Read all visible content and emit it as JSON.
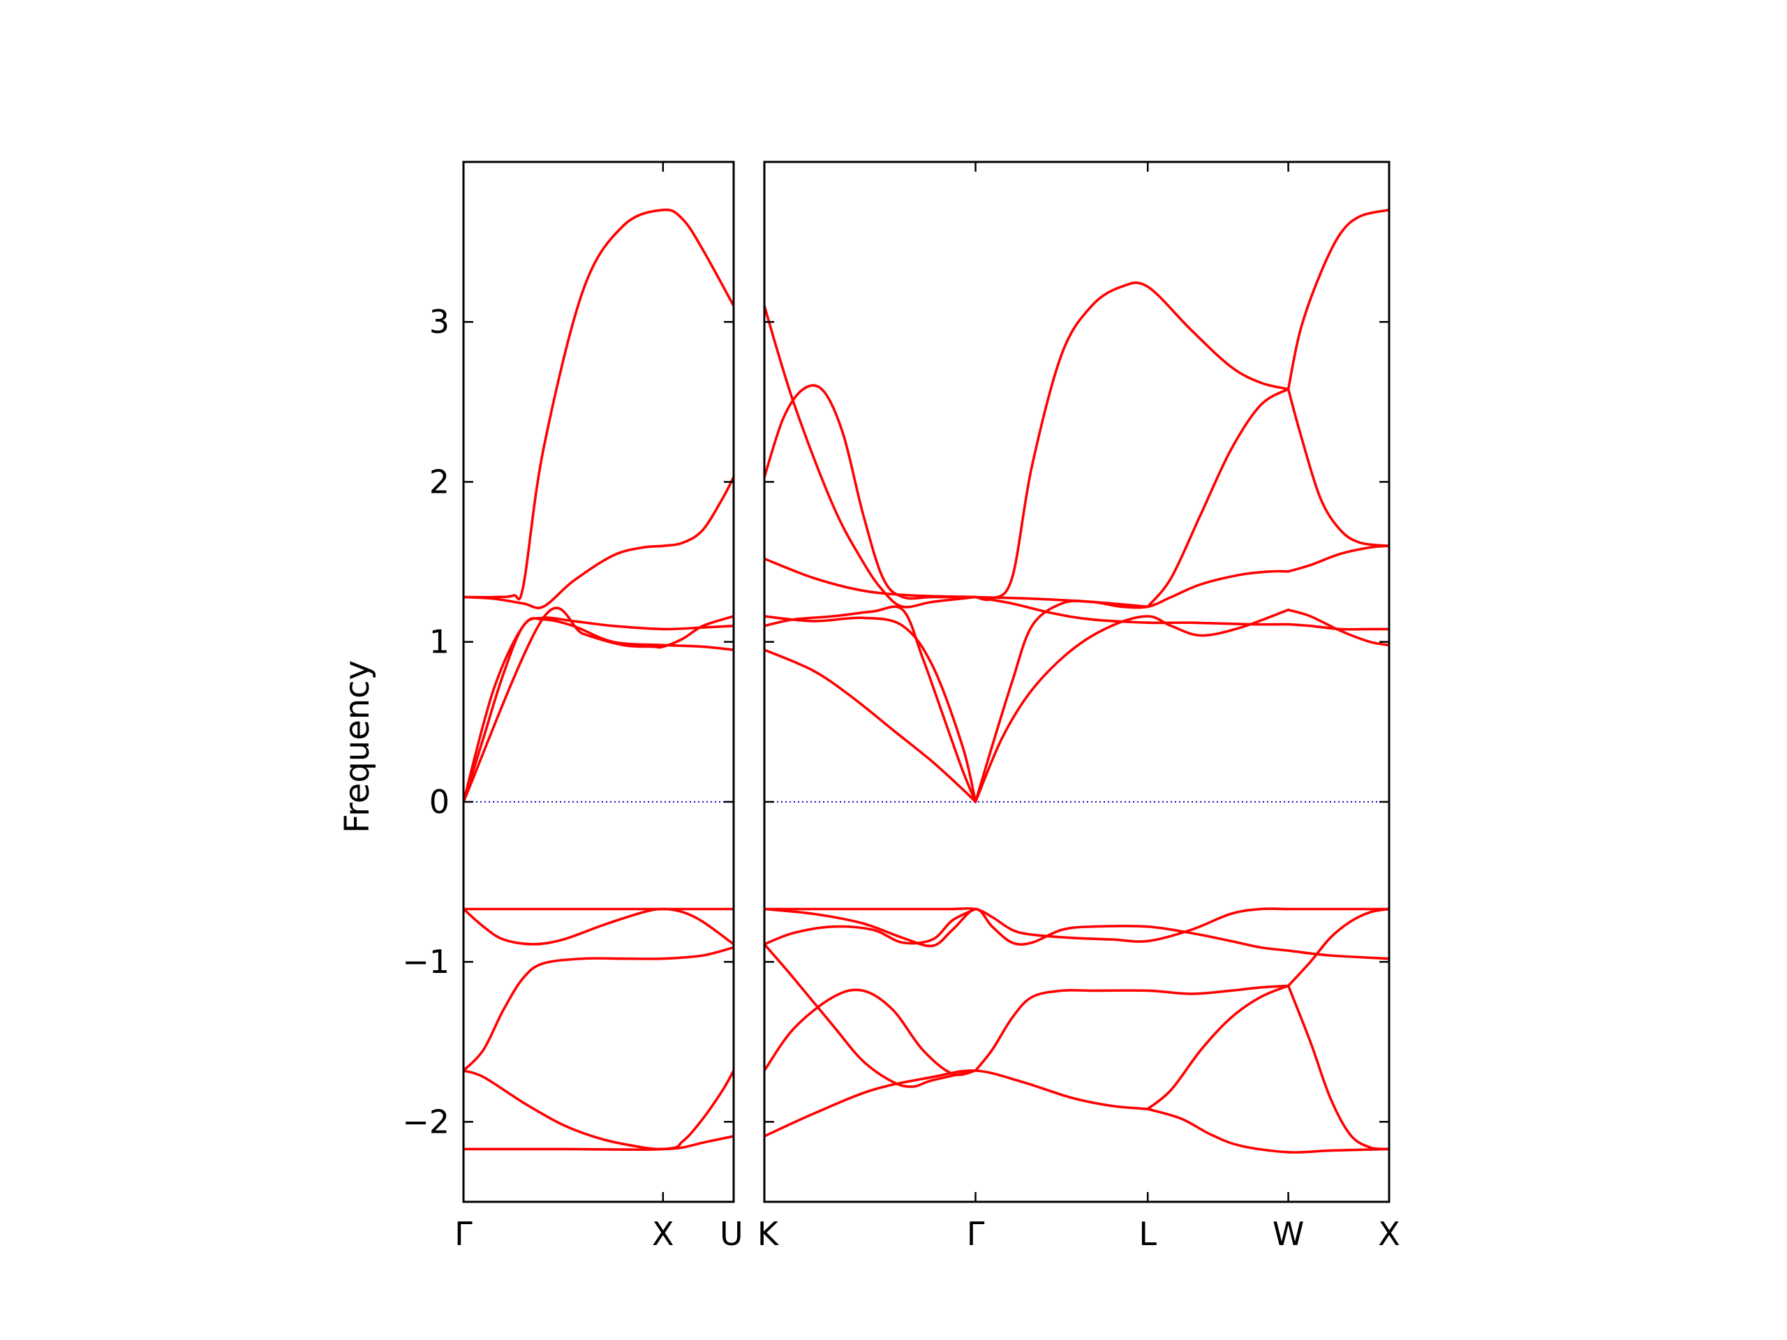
{
  "chart_data": {
    "type": "line",
    "ylabel": "Frequency",
    "ylim": [
      -2.5,
      4.0
    ],
    "yticks": [
      -2,
      -1,
      0,
      1,
      2,
      3
    ],
    "ytick_labels": [
      "−2",
      "−1",
      "0",
      "1",
      "2",
      "3"
    ],
    "grid": false,
    "legend": "none",
    "colors": {
      "bands": "#ff0000",
      "zero_line": "#0000cc",
      "axes": "#000000"
    },
    "zero_line": {
      "y": 0,
      "style": "dotted"
    },
    "panels": [
      {
        "xlim": [
          0,
          1.354
        ],
        "ticks": [
          {
            "x": 0,
            "label": "Γ"
          },
          {
            "x": 1.0,
            "label": "X"
          },
          {
            "x": 1.354,
            "label": "U"
          }
        ],
        "bands": [
          {
            "x": [
              0,
              0.15,
              0.25,
              0.3,
              0.4,
              0.6,
              0.8,
              1.0,
              1.1,
              1.2,
              1.354
            ],
            "y": [
              1.28,
              1.28,
              1.29,
              1.35,
              2.2,
              3.2,
              3.6,
              3.7,
              3.64,
              3.45,
              3.1
            ]
          },
          {
            "x": [
              0,
              0.15,
              0.3,
              0.4,
              0.55,
              0.75,
              0.9,
              1.0,
              1.1,
              1.2,
              1.3,
              1.354
            ],
            "y": [
              1.28,
              1.27,
              1.24,
              1.22,
              1.38,
              1.54,
              1.59,
              1.6,
              1.62,
              1.7,
              1.9,
              2.03
            ]
          },
          {
            "x": [
              0,
              0.15,
              0.3,
              0.4,
              0.55,
              0.75,
              1.0,
              1.2,
              1.354
            ],
            "y": [
              0.0,
              0.7,
              1.1,
              1.14,
              1.1,
              1.0,
              0.98,
              0.97,
              0.95
            ]
          },
          {
            "x": [
              0,
              0.1,
              0.2,
              0.3,
              0.4,
              0.55,
              0.75,
              1.0,
              1.2,
              1.354
            ],
            "y": [
              0.0,
              0.4,
              0.8,
              1.1,
              1.15,
              1.13,
              1.1,
              1.08,
              1.09,
              1.1
            ]
          },
          {
            "x": [
              0,
              0.4,
              0.6,
              0.8,
              0.95,
              1.0,
              1.1,
              1.2,
              1.354
            ],
            "y": [
              0.0,
              1.15,
              1.05,
              0.98,
              0.97,
              0.97,
              1.02,
              1.1,
              1.16
            ]
          },
          {
            "x": [
              0,
              0.5,
              1.0,
              1.354
            ],
            "y": [
              -0.67,
              -0.67,
              -0.67,
              -0.67
            ]
          },
          {
            "x": [
              0,
              0.1,
              0.2,
              0.35,
              0.5,
              0.7,
              0.9,
              1.0,
              1.1,
              1.2,
              1.354
            ],
            "y": [
              -0.67,
              -0.78,
              -0.86,
              -0.89,
              -0.86,
              -0.77,
              -0.69,
              -0.67,
              -0.69,
              -0.75,
              -0.89
            ]
          },
          {
            "x": [
              0,
              0.1,
              0.2,
              0.3,
              0.4,
              0.6,
              0.8,
              1.0,
              1.2,
              1.354
            ],
            "y": [
              -1.68,
              -1.55,
              -1.3,
              -1.1,
              -1.01,
              -0.98,
              -0.98,
              -0.98,
              -0.96,
              -0.91
            ]
          },
          {
            "x": [
              0,
              0.1,
              0.3,
              0.5,
              0.7,
              0.9,
              1.0,
              1.1,
              1.2,
              1.354
            ],
            "y": [
              -1.68,
              -1.72,
              -1.88,
              -2.02,
              -2.11,
              -2.16,
              -2.17,
              -2.16,
              -2.13,
              -2.09
            ]
          },
          {
            "x": [
              0,
              0.5,
              1.0,
              1.1,
              1.2,
              1.3,
              1.354
            ],
            "y": [
              -2.17,
              -2.17,
              -2.17,
              -2.12,
              -1.98,
              -1.8,
              -1.68
            ]
          }
        ]
      },
      {
        "xlim": [
          1.354,
          4.496
        ],
        "ticks": [
          {
            "x": 1.354,
            "label": "K"
          },
          {
            "x": 2.416,
            "label": "Γ"
          },
          {
            "x": 3.282,
            "label": "L"
          },
          {
            "x": 3.989,
            "label": "W"
          },
          {
            "x": 4.496,
            "label": "X"
          }
        ],
        "bands": [
          {
            "x": [
              1.354,
              1.5,
              1.7,
              1.85,
              1.95,
              2.05,
              2.2,
              2.416
            ],
            "y": [
              3.1,
              2.5,
              1.85,
              1.5,
              1.32,
              1.22,
              1.25,
              1.28
            ]
          },
          {
            "x": [
              1.354,
              1.45,
              1.55,
              1.65,
              1.75,
              1.85,
              1.95,
              2.05,
              2.2,
              2.416
            ],
            "y": [
              2.03,
              2.4,
              2.58,
              2.57,
              2.3,
              1.8,
              1.4,
              1.28,
              1.28,
              1.28
            ]
          },
          {
            "x": [
              1.354,
              1.6,
              1.85,
              2.1,
              2.416,
              2.7,
              3.0,
              3.282
            ],
            "y": [
              1.52,
              1.4,
              1.32,
              1.29,
              1.28,
              1.27,
              1.25,
              1.22
            ]
          },
          {
            "x": [
              1.354,
              1.5,
              1.7,
              1.9,
              2.05,
              2.15,
              2.25,
              2.35,
              2.416
            ],
            "y": [
              1.1,
              1.14,
              1.16,
              1.19,
              1.2,
              0.9,
              0.55,
              0.2,
              0.0
            ]
          },
          {
            "x": [
              1.354,
              1.6,
              1.85,
              2.05,
              2.2,
              2.35,
              2.416
            ],
            "y": [
              1.16,
              1.13,
              1.15,
              1.1,
              0.85,
              0.35,
              0.0
            ]
          },
          {
            "x": [
              1.354,
              1.6,
              1.8,
              2.0,
              2.2,
              2.35,
              2.416
            ],
            "y": [
              0.95,
              0.82,
              0.65,
              0.45,
              0.25,
              0.08,
              0.0
            ]
          },
          {
            "x": [
              2.416,
              2.5,
              2.6,
              2.7,
              2.85,
              3.0,
              3.15,
              3.282,
              3.4,
              3.55,
              3.75,
              3.9,
              3.989
            ],
            "y": [
              0.0,
              0.35,
              0.75,
              1.1,
              1.24,
              1.25,
              1.22,
              1.22,
              1.28,
              1.36,
              1.42,
              1.44,
              1.44
            ]
          },
          {
            "x": [
              2.416,
              2.55,
              2.7,
              2.9,
              3.1,
              3.282,
              3.4,
              3.55,
              3.75,
              3.989
            ],
            "y": [
              0.0,
              0.4,
              0.7,
              0.95,
              1.1,
              1.16,
              1.1,
              1.04,
              1.09,
              1.2
            ]
          },
          {
            "x": [
              2.416,
              2.6,
              2.8,
              3.0,
              3.282,
              3.5,
              3.8,
              3.989
            ],
            "y": [
              1.28,
              1.24,
              1.18,
              1.14,
              1.12,
              1.12,
              1.11,
              1.11
            ]
          },
          {
            "x": [
              2.416,
              2.5,
              2.6,
              2.7,
              2.85,
              3.0,
              3.15,
              3.282,
              3.5,
              3.7,
              3.85,
              3.989
            ],
            "y": [
              1.28,
              1.27,
              1.4,
              2.1,
              2.8,
              3.1,
              3.22,
              3.22,
              2.95,
              2.72,
              2.62,
              2.58
            ]
          },
          {
            "x": [
              3.282,
              3.4,
              3.55,
              3.7,
              3.85,
              3.989
            ],
            "y": [
              1.22,
              1.4,
              1.8,
              2.2,
              2.48,
              2.58
            ]
          },
          {
            "x": [
              3.989,
              4.05,
              4.15,
              4.25,
              4.35,
              4.496
            ],
            "y": [
              2.58,
              2.95,
              3.3,
              3.55,
              3.66,
              3.7
            ]
          },
          {
            "x": [
              3.989,
              4.05,
              4.15,
              4.25,
              4.35,
              4.496
            ],
            "y": [
              2.58,
              2.3,
              1.9,
              1.7,
              1.62,
              1.6
            ]
          },
          {
            "x": [
              3.989,
              4.1,
              4.25,
              4.4,
              4.496
            ],
            "y": [
              1.44,
              1.48,
              1.55,
              1.59,
              1.6
            ]
          },
          {
            "x": [
              3.989,
              4.1,
              4.25,
              4.4,
              4.496
            ],
            "y": [
              1.2,
              1.16,
              1.07,
              1.0,
              0.98
            ]
          },
          {
            "x": [
              3.989,
              4.1,
              4.25,
              4.4,
              4.496
            ],
            "y": [
              1.11,
              1.1,
              1.08,
              1.08,
              1.08
            ]
          },
          {
            "x": [
              1.354,
              1.6,
              1.85,
              2.05,
              2.2,
              2.3,
              2.416,
              2.5,
              2.6,
              2.7,
              2.9,
              3.1,
              3.282,
              3.5,
              3.7,
              3.85,
              3.989,
              4.2,
              4.496
            ],
            "y": [
              -0.67,
              -0.67,
              -0.67,
              -0.67,
              -0.67,
              -0.67,
              -0.67,
              -0.72,
              -0.8,
              -0.83,
              -0.85,
              -0.86,
              -0.87,
              -0.8,
              -0.7,
              -0.67,
              -0.67,
              -0.67,
              -0.67
            ]
          },
          {
            "x": [
              1.354,
              1.6,
              1.85,
              2.05,
              2.2,
              2.3,
              2.416,
              2.5,
              2.6,
              2.7,
              2.85,
              3.0,
              3.282,
              3.5,
              3.7,
              3.85,
              3.989,
              4.2,
              4.496
            ],
            "y": [
              -0.67,
              -0.7,
              -0.76,
              -0.85,
              -0.9,
              -0.8,
              -0.67,
              -0.78,
              -0.88,
              -0.88,
              -0.8,
              -0.78,
              -0.78,
              -0.82,
              -0.87,
              -0.91,
              -0.93,
              -0.96,
              -0.98
            ]
          },
          {
            "x": [
              1.354,
              1.5,
              1.7,
              1.9,
              2.05,
              2.2,
              2.3,
              2.416
            ],
            "y": [
              -0.89,
              -0.82,
              -0.78,
              -0.8,
              -0.88,
              -0.86,
              -0.74,
              -0.67
            ]
          },
          {
            "x": [
              1.354,
              1.5,
              1.7,
              1.85,
              2.0,
              2.1,
              2.2,
              2.416
            ],
            "y": [
              -0.89,
              -1.1,
              -1.4,
              -1.62,
              -1.75,
              -1.78,
              -1.74,
              -1.68
            ]
          },
          {
            "x": [
              1.354,
              1.5,
              1.7,
              1.85,
              2.0,
              2.15,
              2.3,
              2.416
            ],
            "y": [
              -1.68,
              -1.42,
              -1.22,
              -1.18,
              -1.3,
              -1.55,
              -1.7,
              -1.68
            ]
          },
          {
            "x": [
              2.416,
              2.5,
              2.6,
              2.7,
              2.85,
              3.0,
              3.282,
              3.5,
              3.7,
              3.85,
              3.989
            ],
            "y": [
              -1.68,
              -1.55,
              -1.35,
              -1.22,
              -1.18,
              -1.18,
              -1.18,
              -1.2,
              -1.18,
              -1.16,
              -1.15
            ]
          },
          {
            "x": [
              1.354,
              1.6,
              1.9,
              2.2,
              2.416,
              2.65,
              2.9,
              3.1,
              3.282
            ],
            "y": [
              -2.09,
              -1.95,
              -1.8,
              -1.72,
              -1.68,
              -1.75,
              -1.85,
              -1.9,
              -1.92
            ]
          },
          {
            "x": [
              3.282,
              3.4,
              3.55,
              3.7,
              3.85,
              3.989
            ],
            "y": [
              -1.92,
              -1.8,
              -1.55,
              -1.35,
              -1.22,
              -1.15
            ]
          },
          {
            "x": [
              3.282,
              3.45,
              3.6,
              3.75,
              3.989,
              4.2,
              4.496
            ],
            "y": [
              -1.92,
              -1.98,
              -2.08,
              -2.15,
              -2.19,
              -2.18,
              -2.17
            ]
          },
          {
            "x": [
              3.989,
              4.1,
              4.2,
              4.3,
              4.4,
              4.496
            ],
            "y": [
              -1.15,
              -1.5,
              -1.85,
              -2.08,
              -2.16,
              -2.17
            ]
          },
          {
            "x": [
              3.989,
              4.1,
              4.2,
              4.3,
              4.4,
              4.496
            ],
            "y": [
              -1.15,
              -1.0,
              -0.85,
              -0.75,
              -0.69,
              -0.67
            ]
          }
        ]
      }
    ]
  }
}
